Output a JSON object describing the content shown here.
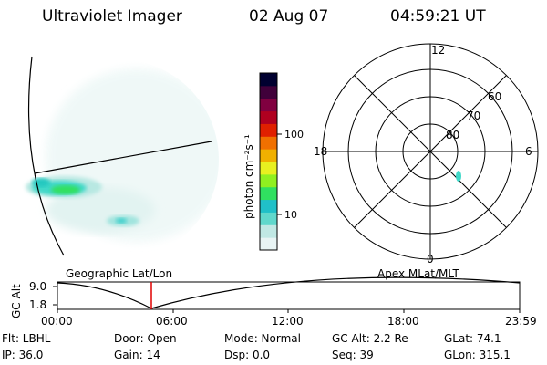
{
  "header": {
    "title": "Ultraviolet Imager",
    "date": "02 Aug 07",
    "time": "04:59:21 UT"
  },
  "colorbar": {
    "label": "photon cm⁻²s⁻¹",
    "ticks": [
      "100",
      "10"
    ],
    "colors": [
      "#e8f4f4",
      "#c0e8e4",
      "#60d8cc",
      "#20c0c8",
      "#30e060",
      "#90f020",
      "#e8f020",
      "#f0b000",
      "#f07000",
      "#e02000",
      "#b00020",
      "#800040",
      "#40003a",
      "#000030"
    ]
  },
  "polar": {
    "mlt": {
      "top": "12",
      "left": "18",
      "right": "6",
      "bottom": "0"
    },
    "mlat": [
      "60",
      "70",
      "80"
    ]
  },
  "timeline": {
    "y_axis_label": "GC Alt",
    "y_ticks": [
      "9.0",
      "1.8"
    ],
    "left_title": "Geographic Lat/Lon",
    "right_title": "Apex  MLat/MLT",
    "x_ticks": [
      "00:00",
      "06:00",
      "12:00",
      "18:00",
      "23:59"
    ],
    "marker_color": "#e00000"
  },
  "info": {
    "row1": {
      "filter": "Flt: LBHL",
      "door": "Door: Open",
      "mode": "Mode: Normal",
      "gc_alt": "GC Alt: 2.2 Re",
      "glat": "GLat:  74.1"
    },
    "row2": {
      "ip": "IP: 36.0",
      "gain": "Gain: 14",
      "dsp": "Dsp:     0.0",
      "seq": "Seq: 39",
      "glon": "GLon: 315.1"
    }
  }
}
